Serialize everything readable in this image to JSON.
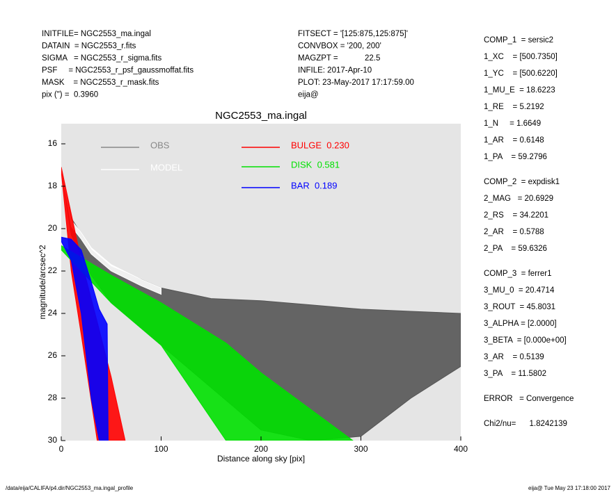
{
  "header_left": [
    "INITFILE= NGC2553_ma.ingal",
    "DATAIN  = NGC2553_r.fits",
    "SIGMA   = NGC2553_r_sigma.fits",
    "PSF     = NGC2553_r_psf_gaussmoffat.fits",
    "MASK    = NGC2553_r_mask.fits",
    "pix (\") =  0.3960"
  ],
  "header_mid": [
    "FITSECT = '[125:875,125:875]'",
    "CONVBOX = '200, 200'",
    "MAGZPT =            22.5",
    "INFILE: 2017-Apr-10",
    "PLOT: 23-May-2017 17:17:59.00",
    "eija@"
  ],
  "params": [
    [
      "COMP_1  = sersic2",
      "1_XC    = [500.7350]",
      "1_YC    = [500.6220]",
      "1_MU_E  = 18.6223",
      "1_RE    = 5.2192",
      "1_N     = 1.6649",
      "1_AR    = 0.6148",
      "1_PA    = 59.2796"
    ],
    [
      "COMP_2  = expdisk1",
      "2_MAG   = 20.6929",
      "2_RS    = 34.2201",
      "2_AR    = 0.5788",
      "2_PA    = 59.6326"
    ],
    [
      "COMP_3  = ferrer1",
      "3_MU_0  = 20.4714",
      "3_ROUT  = 45.8031",
      "3_ALPHA = [2.0000]",
      "3_BETA  = [0.000e+00]",
      "3_AR    = 0.5139",
      "3_PA    = 11.5802"
    ],
    [
      "ERROR   = Convergence"
    ],
    [
      "Chi2/nu=      1.8242139"
    ]
  ],
  "footer_left": "/data/eija/CALIFA/p4.dir/NGC2553_ma.ingal_profile",
  "footer_right": "eija@  Tue May 23 17:18:00 2017",
  "chart_data": {
    "type": "band",
    "title": "NGC2553_ma.ingal",
    "x_label": "Distance along sky [pix]",
    "y_label": "magnitude/arcsec^2",
    "xlim": [
      0,
      400
    ],
    "xticks": [
      0,
      100,
      200,
      300,
      400
    ],
    "ylim": [
      30,
      15.05
    ],
    "yticks": [
      16,
      18,
      20,
      22,
      24,
      26,
      28,
      30
    ],
    "series": [
      {
        "name": "OBS",
        "color": "#555555",
        "legend_color": "#888888",
        "x": [
          0,
          10,
          30,
          50,
          100,
          150,
          200,
          250,
          300,
          350,
          400
        ],
        "values": [
          17.1,
          19.5,
          21.0,
          21.8,
          22.8,
          23.3,
          23.4,
          23.6,
          23.8,
          23.9,
          24.0
        ],
        "values_faint": [
          17.2,
          20.3,
          22.2,
          23.5,
          25.5,
          27.5,
          29.5,
          30,
          29.8,
          28,
          26.5
        ]
      },
      {
        "name": "MODEL",
        "color": "#ffffff",
        "legend_color": "#ffffff",
        "x": [
          0,
          10,
          20,
          30,
          50,
          80,
          100
        ],
        "values": [
          17.1,
          19.6,
          20.2,
          20.9,
          21.7,
          22.4,
          22.8
        ],
        "values_faint": [
          17.2,
          19.9,
          20.5,
          21.2,
          22.0,
          22.7,
          23.1
        ]
      },
      {
        "name": "BULGE  0.230",
        "color": "#ff0000",
        "legend_color": "#ff0000",
        "x": [
          0,
          10,
          20,
          36,
          50,
          64
        ],
        "values": [
          17.1,
          19.3,
          21.5,
          24.4,
          27,
          30
        ],
        "values_faint": [
          17.3,
          22,
          25,
          30,
          30,
          30
        ]
      },
      {
        "name": "DISK  0.581",
        "color": "#00e000",
        "legend_color": "#00e000",
        "x": [
          0,
          50,
          100,
          165,
          200,
          292
        ],
        "values": [
          20.8,
          22.2,
          23.5,
          25.4,
          26.8,
          30
        ],
        "values_faint": [
          21.0,
          23.5,
          25.5,
          30,
          30,
          30
        ]
      },
      {
        "name": "BAR  0.189",
        "color": "#0000ff",
        "legend_color": "#0000ff",
        "x": [
          0,
          10,
          20,
          30,
          38,
          46,
          47
        ],
        "values": [
          20.4,
          20.5,
          21,
          22.5,
          23.8,
          24.5,
          30
        ],
        "values_faint": [
          20.6,
          21.5,
          24,
          28,
          30,
          30,
          30
        ]
      }
    ]
  }
}
